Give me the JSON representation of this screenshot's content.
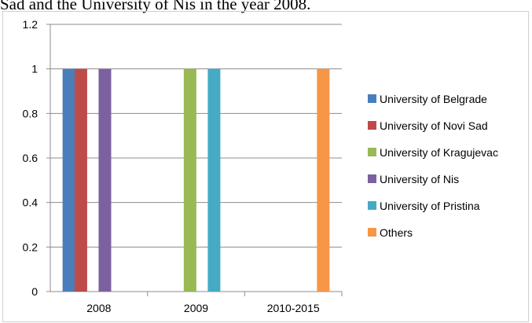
{
  "caption": "Sad and the University of Nis in the year 2008.",
  "chart_data": {
    "type": "bar",
    "categories": [
      "2008",
      "2009",
      "2010-2015"
    ],
    "ylim": [
      0,
      1.2
    ],
    "yticks": [
      "0",
      "0.2",
      "0.4",
      "0.6",
      "0.8",
      "1",
      "1.2"
    ],
    "grid": true,
    "legend_position": "right",
    "series": [
      {
        "name": "University of Belgrade",
        "color": "#4a7ebb",
        "values": [
          1,
          0,
          0
        ]
      },
      {
        "name": "University of Novi Sad",
        "color": "#be4b48",
        "values": [
          1,
          0,
          0
        ]
      },
      {
        "name": "University of Kragujevac",
        "color": "#98b954",
        "values": [
          0,
          1,
          0
        ]
      },
      {
        "name": "University of Nis",
        "color": "#7d60a0",
        "values": [
          1,
          0,
          0
        ]
      },
      {
        "name": "University of Pristina",
        "color": "#46aac5",
        "values": [
          0,
          1,
          0
        ]
      },
      {
        "name": "Others",
        "color": "#f79646",
        "values": [
          0,
          0,
          1
        ]
      }
    ]
  }
}
